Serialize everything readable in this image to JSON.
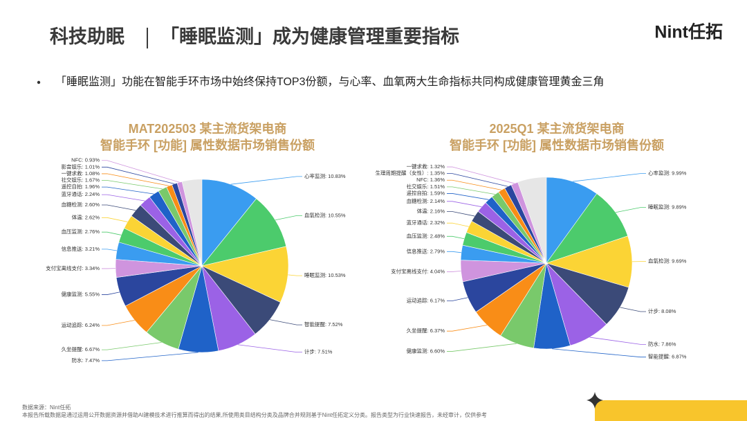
{
  "header": {
    "title_left": "科技助眠",
    "title_right": "「睡眠监测」成为健康管理重要指标",
    "logo": "Nint任拓"
  },
  "bullet": "「睡眠监测」功能在智能手环市场中始终保持TOP3份额，与心率、血氧两大生命指标共同构成健康管理黄金三角",
  "chart_data": [
    {
      "type": "pie",
      "title": [
        "MAT202503 某主流货架电商",
        "智能手环 [功能] 属性数据市场销售份额"
      ],
      "values": [
        10.83,
        10.55,
        10.53,
        7.52,
        7.51,
        7.47,
        6.67,
        6.24,
        5.55,
        3.34,
        3.21,
        2.76,
        2.62,
        2.6,
        2.24,
        1.96,
        1.67,
        1.08,
        1.01,
        0.93
      ],
      "value_labels": [
        "心率监测: 10.83%",
        "血氧检测: 10.55%",
        "睡眠监测: 10.53%",
        "智能提醒: 7.52%",
        "计步: 7.51%",
        "防水: 7.47%",
        "久坐提醒: 6.67%",
        "运动追踪: 6.24%",
        "健康监测: 5.55%",
        "支付宝离线支付: 3.34%",
        "信息推送: 3.21%",
        "血压监测: 2.76%",
        "体温: 2.62%",
        "血糖检测: 2.60%",
        "蓝牙通话: 2.24%",
        "遥控自拍: 1.96%",
        "社交娱乐: 1.67%",
        "一键求救: 1.08%",
        "影音娱乐: 1.01%",
        "NFC: 0.93%"
      ],
      "colors": [
        "#3a9cf0",
        "#4ccb6c",
        "#fbd435",
        "#3b4a78",
        "#9b62e6",
        "#1f62c8",
        "#79c96b",
        "#f98d17",
        "#2b469e",
        "#cf94de"
      ]
    },
    {
      "type": "pie",
      "title": [
        "2025Q1 某主流货架电商",
        "智能手环 [功能] 属性数据市场销售份额"
      ],
      "values": [
        9.99,
        9.89,
        9.69,
        8.08,
        7.86,
        6.87,
        6.6,
        6.37,
        6.17,
        4.04,
        2.79,
        2.48,
        2.32,
        2.16,
        2.14,
        1.59,
        1.51,
        1.36,
        1.35,
        1.32
      ],
      "value_labels": [
        "心率监测: 9.99%",
        "睡眠监测: 9.89%",
        "血氧检测: 9.69%",
        "计步: 8.08%",
        "防水: 7.86%",
        "智能提醒: 6.87%",
        "健康监测: 6.60%",
        "久坐提醒: 6.37%",
        "运动追踪: 6.17%",
        "支付宝离线支付: 4.04%",
        "信息推送: 2.79%",
        "血压监测: 2.48%",
        "蓝牙通话: 2.32%",
        "体温: 2.16%",
        "血糖检测: 2.14%",
        "遥控自拍: 1.59%",
        "社交娱乐: 1.51%",
        "NFC: 1.36%",
        "生理周期提醒（女性）: 1.35%",
        "一键求救: 1.32%"
      ],
      "colors": [
        "#3a9cf0",
        "#4ccb6c",
        "#fbd435",
        "#3b4a78",
        "#9b62e6",
        "#1f62c8",
        "#79c96b",
        "#f98d17",
        "#2b469e",
        "#cf94de"
      ]
    }
  ],
  "footer": {
    "source": "数据来源：Nint任拓",
    "note": "本报告所载数据是通过运用公开数据资源并借助AI建模技术进行推算而得出的结果,所使用类目结构分类及品牌合并规则基于Nint任拓定义分类。报告类型为行业快速报告，未经审计，仅供参考"
  }
}
